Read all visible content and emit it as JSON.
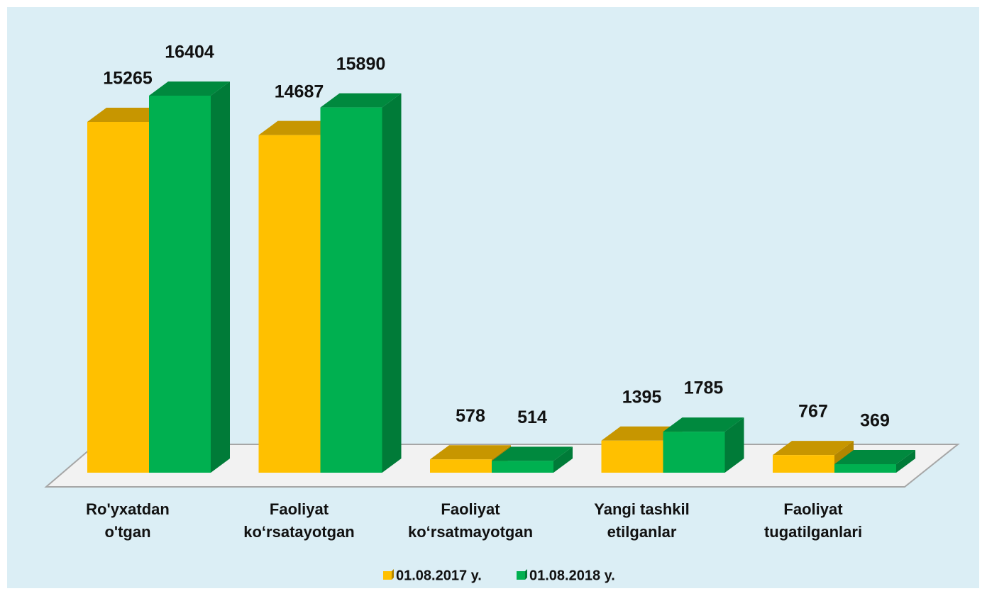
{
  "chart_data": {
    "type": "bar3d",
    "categories": [
      [
        "Ro'yxatdan",
        "o'tgan"
      ],
      [
        "Faoliyat",
        "ko‘rsatayotgan"
      ],
      [
        "Faoliyat",
        "ko‘rsatmayotgan"
      ],
      [
        "Yangi tashkil",
        "etilganlar"
      ],
      [
        "Faoliyat",
        "tugatilganlari"
      ]
    ],
    "series": [
      {
        "name": "01.08.2017 y.",
        "color": "#ffc000",
        "values": [
          15265,
          14687,
          578,
          1395,
          767
        ]
      },
      {
        "name": "01.08.2018 y.",
        "color": "#00b050",
        "values": [
          16404,
          15890,
          514,
          1785,
          369
        ]
      }
    ],
    "legend": "bottom"
  }
}
